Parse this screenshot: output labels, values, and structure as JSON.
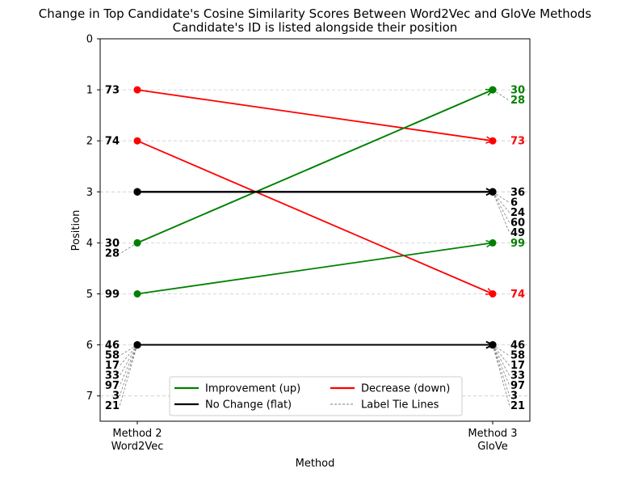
{
  "chart_data": {
    "type": "line",
    "title": "Change in Top Candidate's Cosine Similarity Scores Between Word2Vec and GloVe Methods",
    "subtitle": "Candidate's ID is listed alongside their position",
    "xlabel": "Method",
    "ylabel": "Position",
    "x_categories": [
      "Method 2\nWord2Vec",
      "Method 3\nGloVe"
    ],
    "y_ticks": [
      0,
      1,
      2,
      3,
      4,
      5,
      6,
      7
    ],
    "ylim": [
      7.5,
      0
    ],
    "grid": "horizontal dashed",
    "series": [
      {
        "id": "73",
        "from": 1,
        "to": 2,
        "change": "down"
      },
      {
        "id": "74",
        "from": 2,
        "to": 5,
        "change": "down"
      },
      {
        "id": "30",
        "from": 4,
        "to": 1,
        "change": "up"
      },
      {
        "id": "28",
        "from": 4,
        "to": 1,
        "change": "up"
      },
      {
        "id": "99",
        "from": 5,
        "to": 4,
        "change": "up"
      },
      {
        "id": "36",
        "from": 3,
        "to": 3,
        "change": "flat"
      },
      {
        "id": "6",
        "from": 3,
        "to": 3,
        "change": "flat"
      },
      {
        "id": "24",
        "from": 3,
        "to": 3,
        "change": "flat"
      },
      {
        "id": "60",
        "from": 3,
        "to": 3,
        "change": "flat"
      },
      {
        "id": "49",
        "from": 3,
        "to": 3,
        "change": "flat"
      },
      {
        "id": "46",
        "from": 6,
        "to": 6,
        "change": "flat"
      },
      {
        "id": "58",
        "from": 6,
        "to": 6,
        "change": "flat"
      },
      {
        "id": "17",
        "from": 6,
        "to": 6,
        "change": "flat"
      },
      {
        "id": "33",
        "from": 6,
        "to": 6,
        "change": "flat"
      },
      {
        "id": "97",
        "from": 6,
        "to": 6,
        "change": "flat"
      },
      {
        "id": "3",
        "from": 6,
        "to": 6,
        "change": "flat"
      },
      {
        "id": "21",
        "from": 6,
        "to": 6,
        "change": "flat"
      }
    ],
    "left_labels": [
      {
        "position": 1,
        "ids": [
          "73"
        ],
        "change": "none"
      },
      {
        "position": 2,
        "ids": [
          "74"
        ],
        "change": "none"
      },
      {
        "position": 4,
        "ids": [
          "30",
          "28"
        ],
        "change": "none"
      },
      {
        "position": 5,
        "ids": [
          "99"
        ],
        "change": "none"
      },
      {
        "position": 6,
        "ids": [
          "46",
          "58",
          "17",
          "33",
          "97",
          "3",
          "21"
        ],
        "change": "none"
      }
    ],
    "right_labels": [
      {
        "position": 1,
        "ids": [
          "30",
          "28"
        ],
        "change": "up"
      },
      {
        "position": 2,
        "ids": [
          "73"
        ],
        "change": "down"
      },
      {
        "position": 3,
        "ids": [
          "36",
          "6",
          "24",
          "60",
          "49"
        ],
        "change": "flat"
      },
      {
        "position": 4,
        "ids": [
          "99"
        ],
        "change": "up"
      },
      {
        "position": 5,
        "ids": [
          "74"
        ],
        "change": "down"
      },
      {
        "position": 6,
        "ids": [
          "46",
          "58",
          "17",
          "33",
          "97",
          "3",
          "21"
        ],
        "change": "flat"
      }
    ],
    "colors": {
      "up": "#008000",
      "down": "#ff0000",
      "flat": "#000000",
      "tie": "#808080"
    },
    "legend": {
      "placement": "lower-center",
      "entries": [
        {
          "label": "Improvement (up)",
          "style": "up"
        },
        {
          "label": "Decrease (down)",
          "style": "down"
        },
        {
          "label": "No Change (flat)",
          "style": "flat"
        },
        {
          "label": "Label Tie Lines",
          "style": "tie"
        }
      ]
    }
  }
}
